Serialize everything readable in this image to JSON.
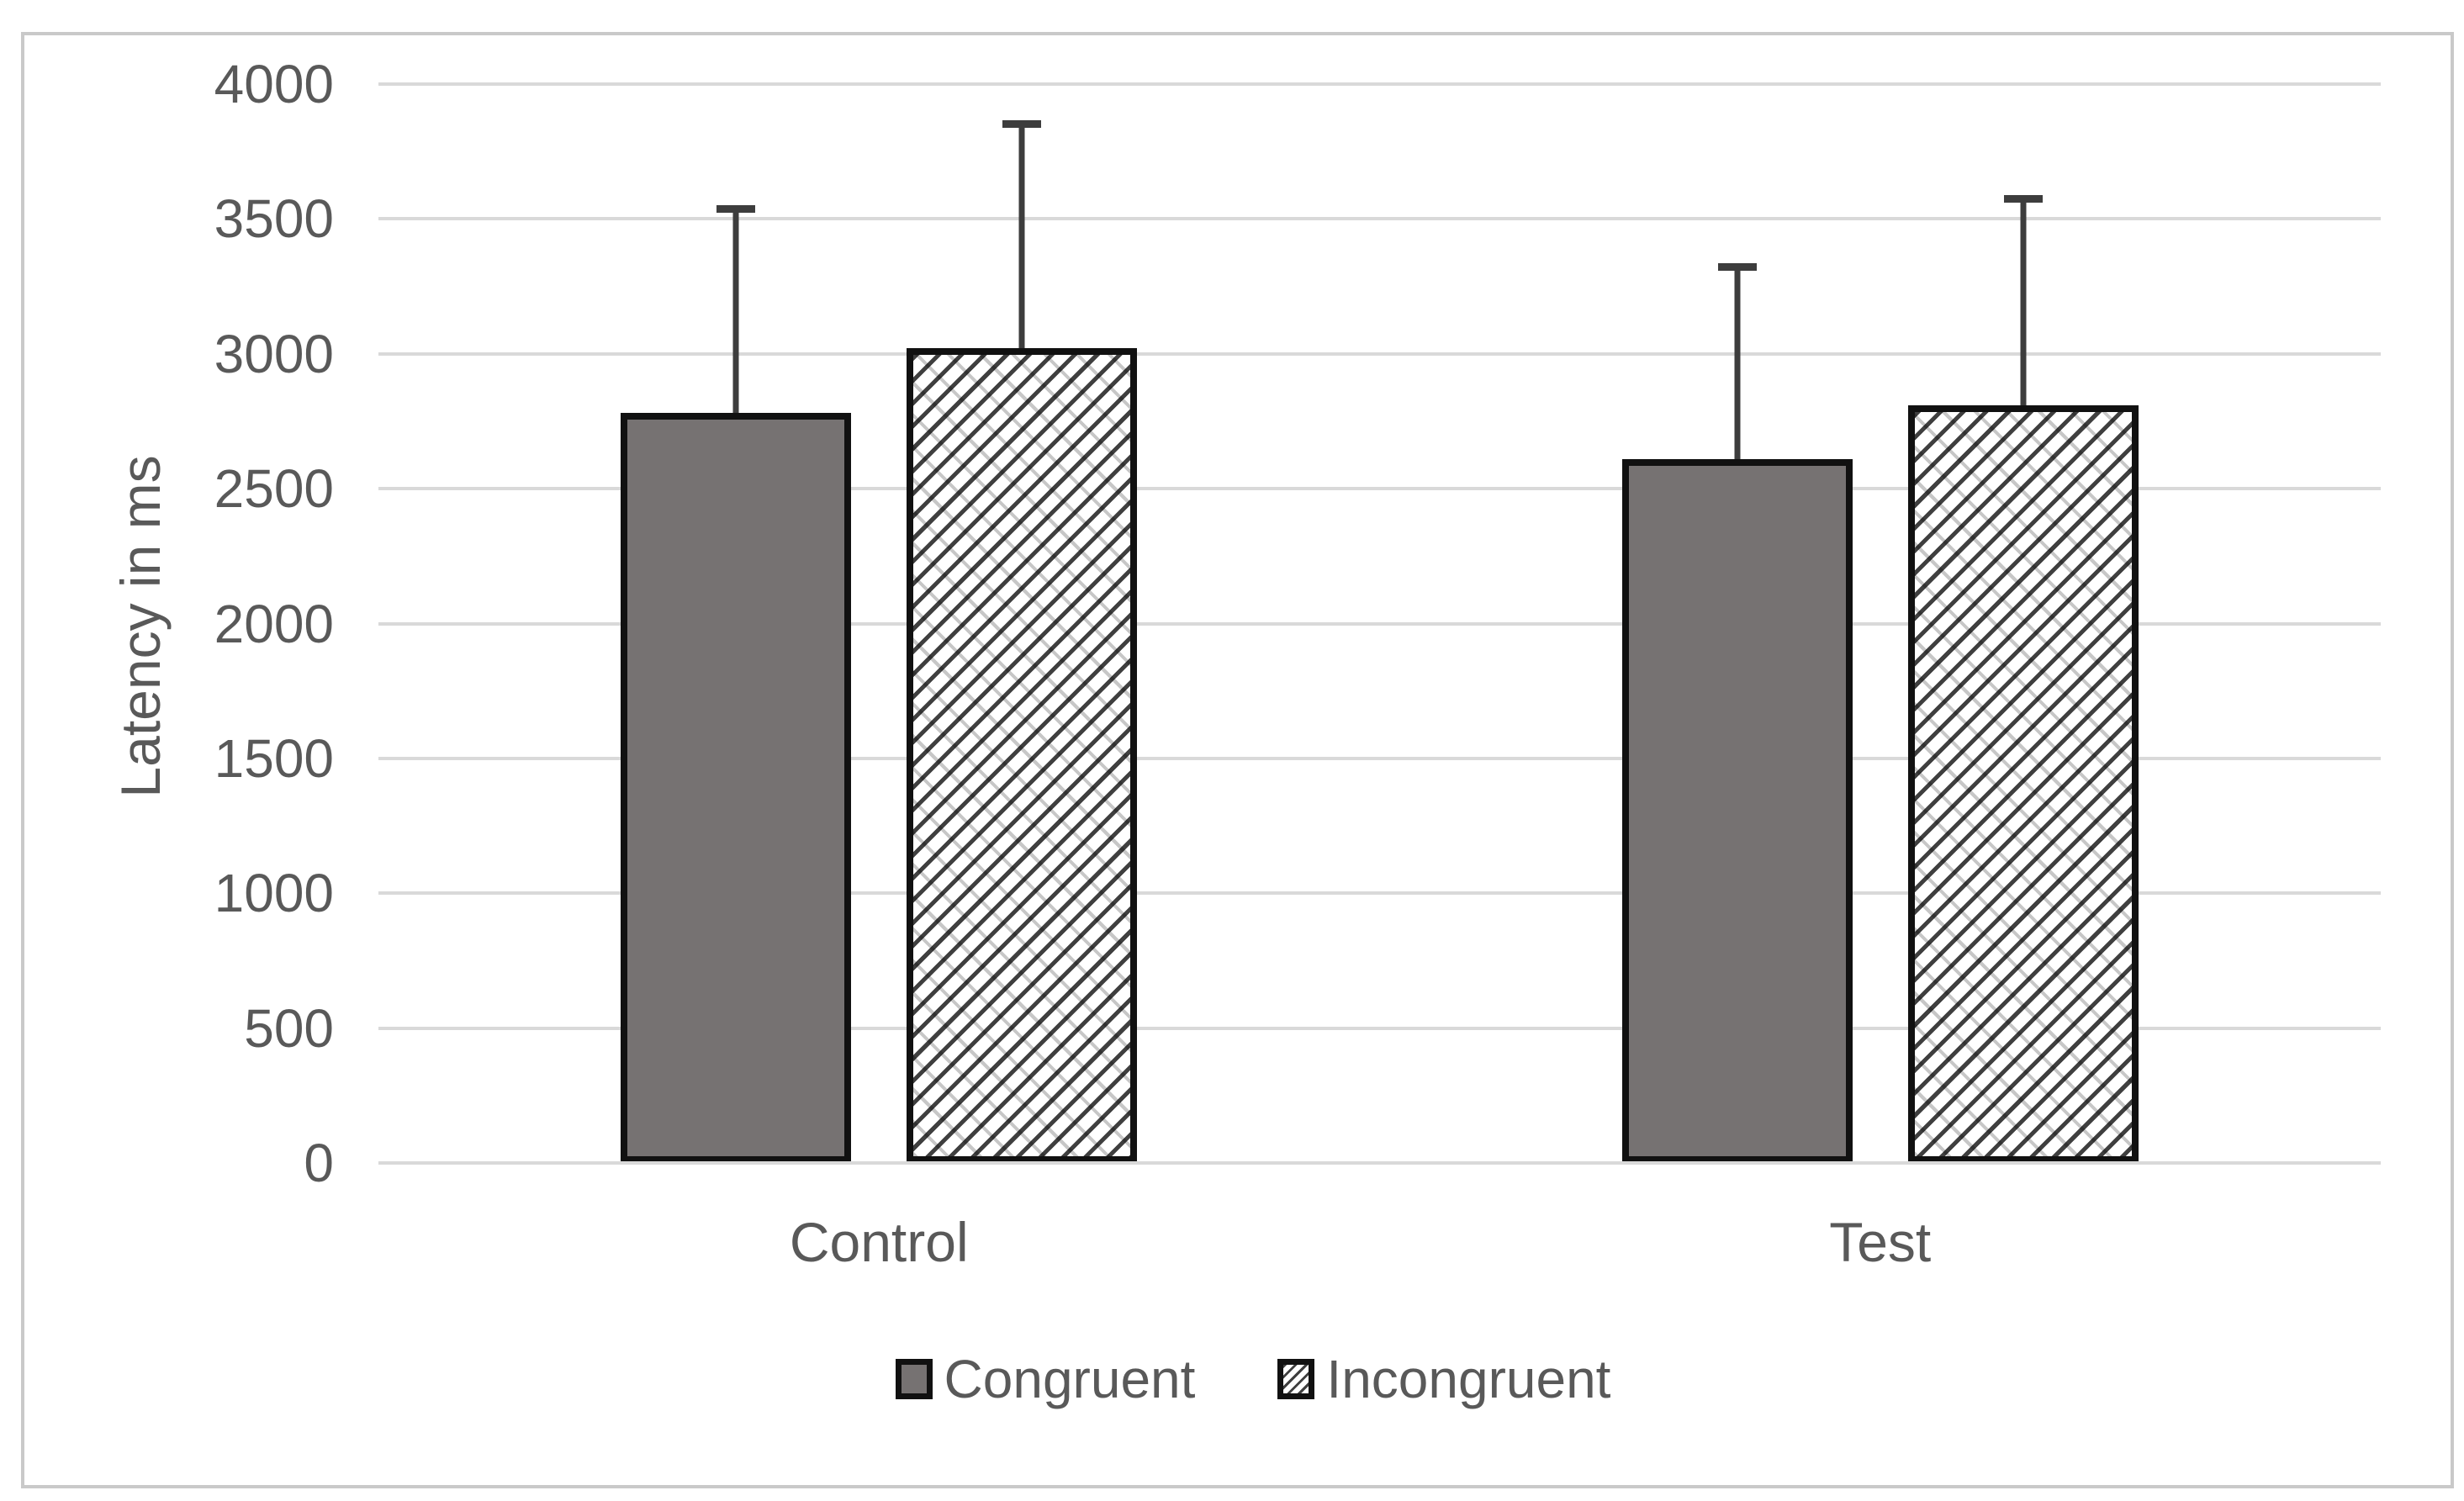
{
  "colors": {
    "background": "#ffffff",
    "frame_border": "#c9c9c9",
    "gridline": "#d9d9d9",
    "axis_text": "#595959",
    "bar_gray_fill": "#767272",
    "bar_border": "#111111",
    "hatch_line": "#3f3f3f",
    "error_bar": "#3d3d3d"
  },
  "chart_data": {
    "type": "bar",
    "title": "",
    "xlabel": "",
    "ylabel": "Latency in ms",
    "categories": [
      "Control",
      "Test"
    ],
    "series": [
      {
        "name": "Congruent",
        "style": "solid",
        "values": [
          2780,
          2610
        ],
        "error_plus": [
          760,
          715
        ]
      },
      {
        "name": "Incongruent",
        "style": "hatch",
        "values": [
          3020,
          2810
        ],
        "error_plus": [
          835,
          765
        ]
      }
    ],
    "ylim": [
      0,
      4000
    ],
    "ytick_step": 500,
    "yticks": [
      "0",
      "500",
      "1000",
      "1500",
      "2000",
      "2500",
      "3000",
      "3500",
      "4000"
    ],
    "grid": "horizontal",
    "legend_position": "bottom",
    "error_bars": "plus-direction-only"
  }
}
